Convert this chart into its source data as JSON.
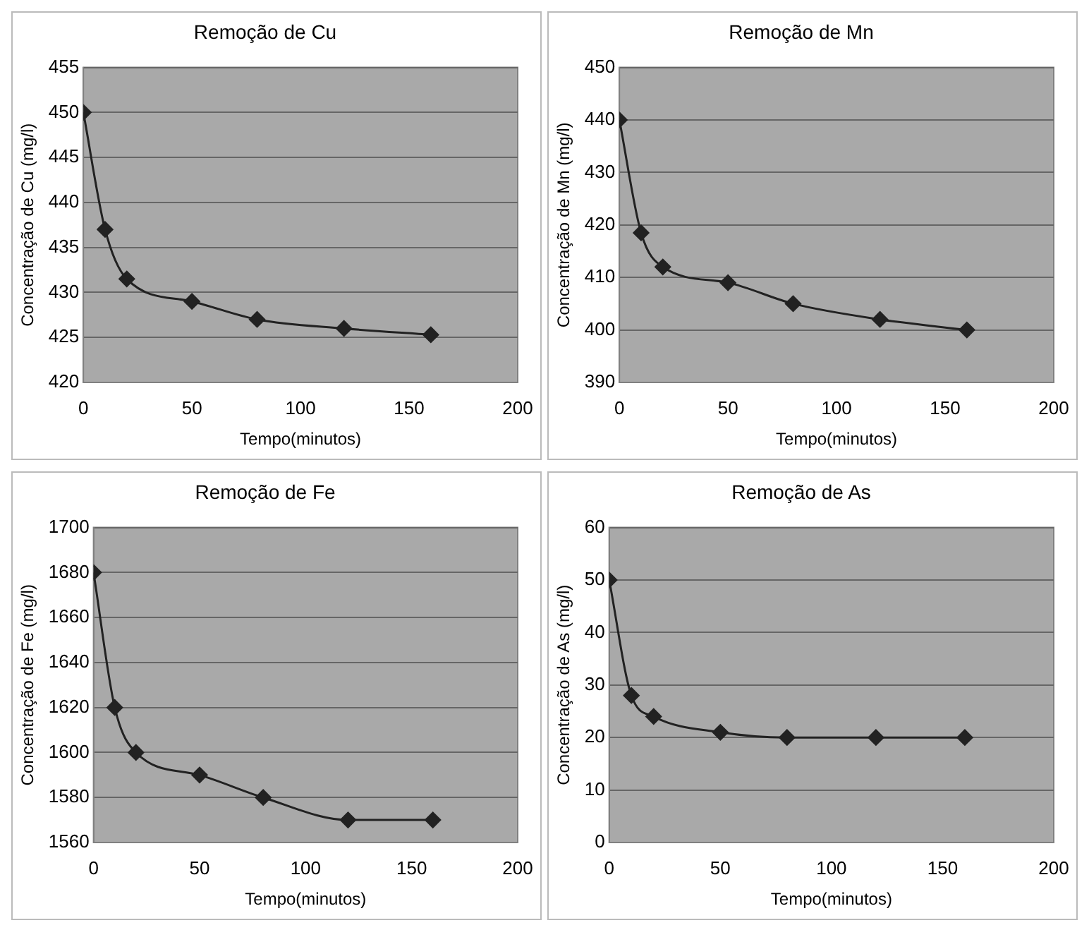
{
  "chart_data": [
    {
      "type": "line",
      "title": "Remoção de Cu",
      "xlabel": "Tempo(minutos)",
      "ylabel": "Concentração de Cu (mg/l)",
      "x": [
        0,
        10,
        20,
        50,
        80,
        120,
        160
      ],
      "series": [
        {
          "color": "#222222",
          "values": [
            450,
            437,
            431.5,
            429,
            427,
            426,
            425.3
          ]
        }
      ],
      "xlim": [
        0,
        200
      ],
      "xticks": [
        0,
        50,
        100,
        150,
        200
      ],
      "ylim": [
        420,
        455
      ],
      "yticks": [
        420,
        425,
        430,
        435,
        440,
        445,
        450,
        455
      ],
      "grid": "y",
      "marker": "diamond"
    },
    {
      "type": "line",
      "title": "Remoção de Mn",
      "xlabel": "Tempo(minutos)",
      "ylabel": "Concentração de Mn (mg/l)",
      "x": [
        0,
        10,
        20,
        50,
        80,
        120,
        160
      ],
      "series": [
        {
          "color": "#222222",
          "values": [
            440,
            418.5,
            412,
            409,
            405,
            402,
            400
          ]
        }
      ],
      "xlim": [
        0,
        200
      ],
      "xticks": [
        0,
        50,
        100,
        150,
        200
      ],
      "ylim": [
        390,
        450
      ],
      "yticks": [
        390,
        400,
        410,
        420,
        430,
        440,
        450
      ],
      "grid": "y",
      "marker": "diamond"
    },
    {
      "type": "line",
      "title": "Remoção de Fe",
      "xlabel": "Tempo(minutos)",
      "ylabel": "Concentração de Fe (mg/l)",
      "x": [
        0,
        10,
        20,
        50,
        80,
        120,
        160
      ],
      "series": [
        {
          "color": "#222222",
          "values": [
            1680,
            1620,
            1600,
            1590,
            1580,
            1570,
            1570
          ]
        }
      ],
      "xlim": [
        0,
        200
      ],
      "xticks": [
        0,
        50,
        100,
        150,
        200
      ],
      "ylim": [
        1560,
        1700
      ],
      "yticks": [
        1560,
        1580,
        1600,
        1620,
        1640,
        1660,
        1680,
        1700
      ],
      "grid": "y",
      "marker": "diamond"
    },
    {
      "type": "line",
      "title": "Remoção de As",
      "xlabel": "Tempo(minutos)",
      "ylabel": "Concentração de As (mg/l)",
      "x": [
        0,
        10,
        20,
        50,
        80,
        120,
        160
      ],
      "series": [
        {
          "color": "#222222",
          "values": [
            50,
            28,
            24,
            21,
            20,
            20,
            20
          ]
        }
      ],
      "xlim": [
        0,
        200
      ],
      "xticks": [
        0,
        50,
        100,
        150,
        200
      ],
      "ylim": [
        0,
        60
      ],
      "yticks": [
        0,
        10,
        20,
        30,
        40,
        50,
        60
      ],
      "grid": "y",
      "marker": "diamond"
    }
  ]
}
